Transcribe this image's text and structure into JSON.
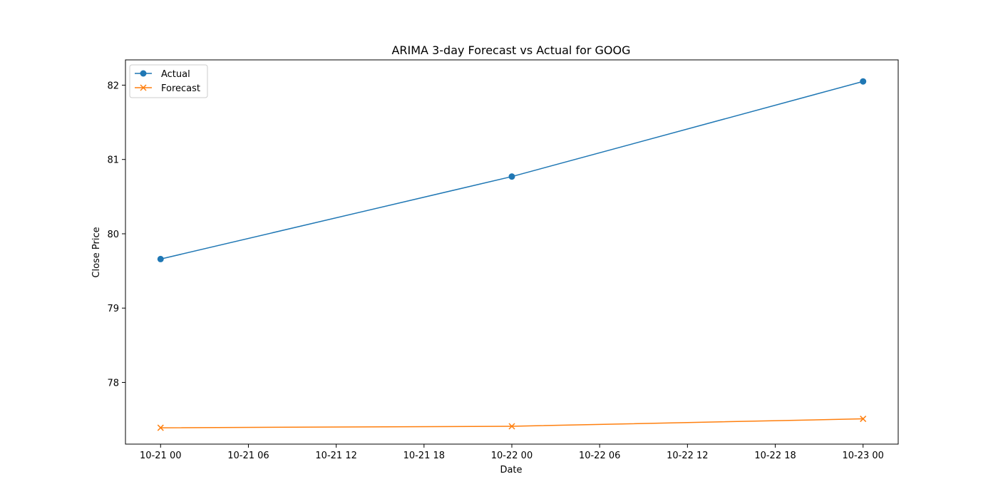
{
  "chart_data": {
    "type": "line",
    "title": "ARIMA 3-day Forecast vs Actual for GOOG",
    "xlabel": "Date",
    "ylabel": "Close Price",
    "x": [
      "10-21 00",
      "10-22 00",
      "10-23 00"
    ],
    "x_hours": [
      0,
      24,
      48
    ],
    "xlim": [
      -2.4,
      50.4
    ],
    "xticks": [
      "10-21 00",
      "10-21 06",
      "10-21 12",
      "10-21 18",
      "10-22 00",
      "10-22 06",
      "10-22 12",
      "10-22 18",
      "10-23 00"
    ],
    "ylim": [
      77.17,
      82.34
    ],
    "yticks": [
      "78",
      "79",
      "80",
      "81",
      "82"
    ],
    "grid": false,
    "legend_position": "top-left",
    "series": [
      {
        "name": "Actual",
        "values": [
          79.66,
          80.77,
          82.05
        ],
        "color": "#1f77b4",
        "marker": "circle"
      },
      {
        "name": "Forecast",
        "values": [
          77.39,
          77.41,
          77.51
        ],
        "color": "#ff7f0e",
        "marker": "x"
      }
    ]
  }
}
